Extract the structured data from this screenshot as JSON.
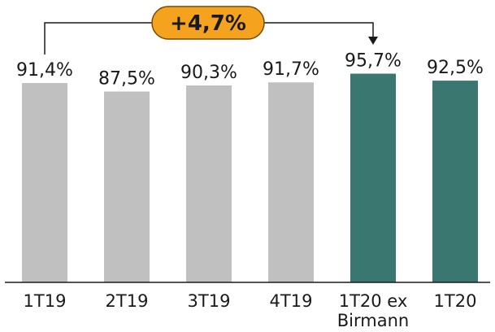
{
  "chart_data": {
    "type": "bar",
    "categories": [
      "1T19",
      "2T19",
      "3T19",
      "4T19",
      "1T20 ex Birmann",
      "1T20"
    ],
    "category_label_lines": [
      [
        "1T19"
      ],
      [
        "2T19"
      ],
      [
        "3T19"
      ],
      [
        "4T19"
      ],
      [
        "1T20 ex",
        "Birmann"
      ],
      [
        "1T20"
      ]
    ],
    "values": [
      91.4,
      87.5,
      90.3,
      91.7,
      95.7,
      92.5
    ],
    "value_labels": [
      "91,4%",
      "87,5%",
      "90,3%",
      "91,7%",
      "95,7%",
      "92,5%"
    ],
    "bar_colors": [
      "#c0c0c0",
      "#c0c0c0",
      "#c0c0c0",
      "#c0c0c0",
      "#3a7770",
      "#3a7770"
    ],
    "ylim": [
      0,
      100
    ],
    "grid": false,
    "title": "",
    "xlabel": "",
    "ylabel": "",
    "annotation": {
      "text": "+4,7%",
      "from_category": "1T19",
      "to_category": "1T20 ex Birmann",
      "fill_color": "#f5a31f",
      "border_color": "#7a4a00"
    }
  }
}
